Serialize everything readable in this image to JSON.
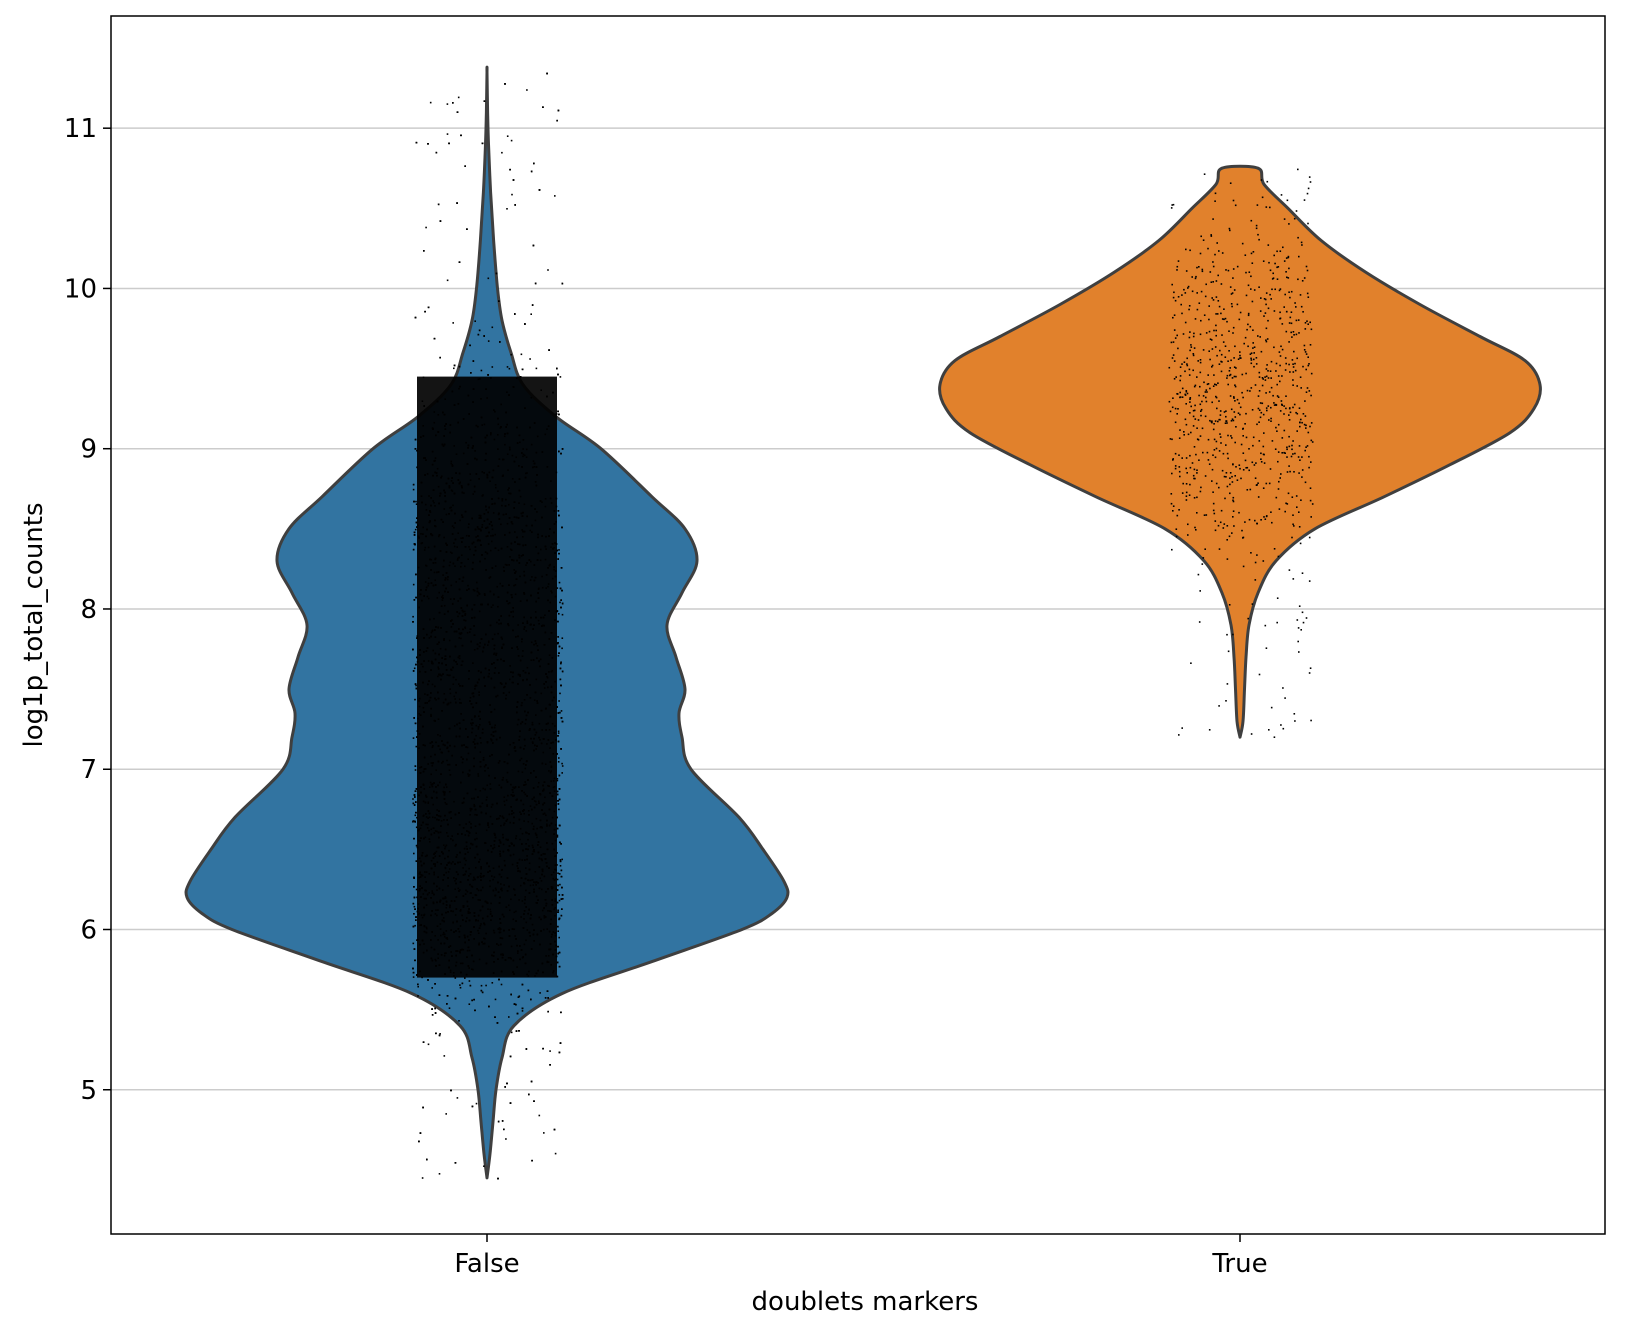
{
  "chart_data": {
    "type": "violin",
    "xlabel": "doublets markers",
    "ylabel": "log1p_total_counts",
    "ylim": [
      4.1,
      11.7
    ],
    "yticks": [
      5,
      6,
      7,
      8,
      9,
      10,
      11
    ],
    "grid": {
      "y": true,
      "x": false
    },
    "legend": "none",
    "categories": [
      "False",
      "True"
    ],
    "series": [
      {
        "category": "False",
        "color": "#3274a1",
        "min": 4.45,
        "max": 11.35,
        "density": [
          [
            4.45,
            0.0
          ],
          [
            4.6,
            0.01
          ],
          [
            4.8,
            0.02
          ],
          [
            5.0,
            0.03
          ],
          [
            5.2,
            0.05
          ],
          [
            5.4,
            0.09
          ],
          [
            5.6,
            0.25
          ],
          [
            5.8,
            0.55
          ],
          [
            6.0,
            0.85
          ],
          [
            6.1,
            0.95
          ],
          [
            6.2,
            1.0
          ],
          [
            6.3,
            0.99
          ],
          [
            6.5,
            0.92
          ],
          [
            6.7,
            0.84
          ],
          [
            7.0,
            0.68
          ],
          [
            7.2,
            0.65
          ],
          [
            7.35,
            0.64
          ],
          [
            7.5,
            0.66
          ],
          [
            7.7,
            0.63
          ],
          [
            7.9,
            0.6
          ],
          [
            8.1,
            0.65
          ],
          [
            8.3,
            0.7
          ],
          [
            8.5,
            0.66
          ],
          [
            8.7,
            0.55
          ],
          [
            9.0,
            0.38
          ],
          [
            9.2,
            0.23
          ],
          [
            9.4,
            0.12
          ],
          [
            9.6,
            0.08
          ],
          [
            9.8,
            0.05
          ],
          [
            10.0,
            0.035
          ],
          [
            10.3,
            0.022
          ],
          [
            10.6,
            0.012
          ],
          [
            10.9,
            0.005
          ],
          [
            11.1,
            0.002
          ],
          [
            11.35,
            0.0
          ]
        ],
        "jitter_range": [
          4.45,
          11.35
        ],
        "jitter_peak": 6.8
      },
      {
        "category": "True",
        "color": "#e1812c",
        "min": 7.2,
        "max": 10.75,
        "density": [
          [
            7.2,
            0.0
          ],
          [
            7.3,
            0.01
          ],
          [
            7.5,
            0.015
          ],
          [
            7.7,
            0.02
          ],
          [
            7.9,
            0.03
          ],
          [
            8.1,
            0.06
          ],
          [
            8.3,
            0.12
          ],
          [
            8.5,
            0.25
          ],
          [
            8.7,
            0.48
          ],
          [
            8.9,
            0.7
          ],
          [
            9.1,
            0.9
          ],
          [
            9.25,
            0.98
          ],
          [
            9.4,
            1.0
          ],
          [
            9.55,
            0.95
          ],
          [
            9.7,
            0.8
          ],
          [
            9.9,
            0.6
          ],
          [
            10.1,
            0.42
          ],
          [
            10.3,
            0.27
          ],
          [
            10.5,
            0.16
          ],
          [
            10.65,
            0.08
          ],
          [
            10.75,
            0.06
          ]
        ],
        "jitter_range": [
          7.2,
          10.75
        ],
        "jitter_peak": 9.3
      }
    ]
  }
}
